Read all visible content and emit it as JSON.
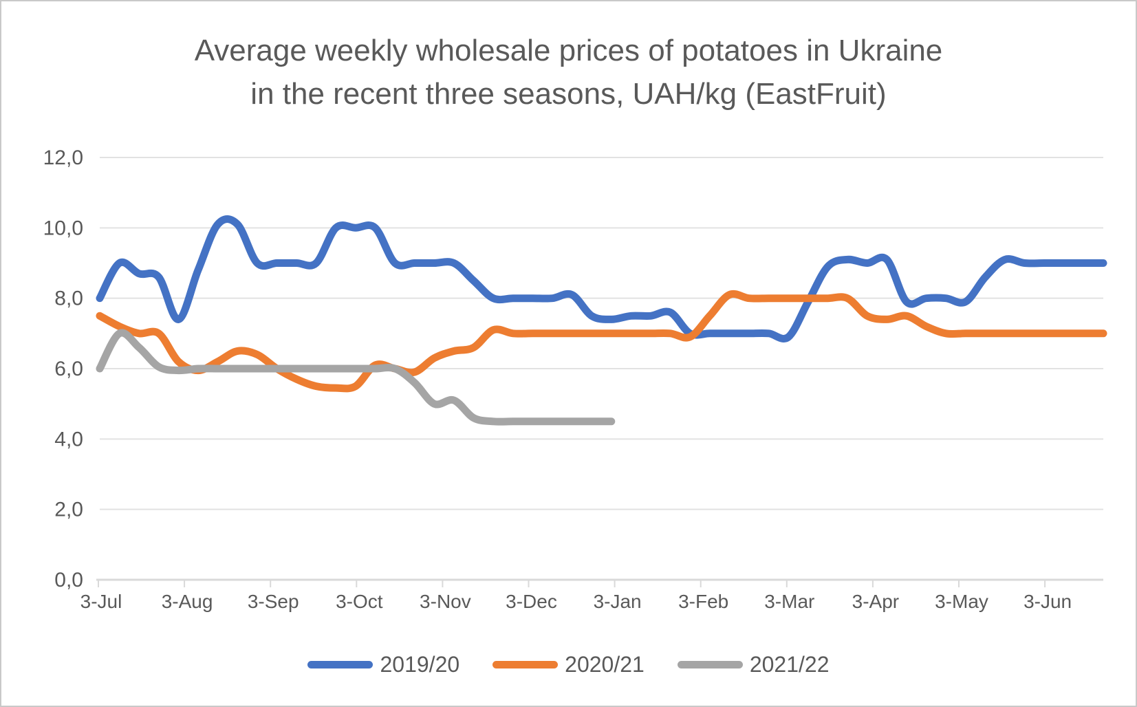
{
  "title": {
    "line1": "Average weekly wholesale prices of potatoes in Ukraine",
    "line2": "in the recent three seasons, UAH/kg (EastFruit)"
  },
  "chart_data": {
    "type": "line",
    "title": "Average weekly wholesale prices of potatoes in Ukraine in the recent three seasons, UAH/kg (EastFruit)",
    "frequency": "weekly",
    "grid": "horizontal",
    "legend_position": "bottom",
    "x_axis": {
      "tick_labels": [
        "3-Jul",
        "3-Aug",
        "3-Sep",
        "3-Oct",
        "3-Nov",
        "3-Dec",
        "3-Jan",
        "3-Feb",
        "3-Mar",
        "3-Apr",
        "3-May",
        "3-Jun"
      ]
    },
    "y_axis": {
      "min": 0,
      "max": 12,
      "step": 2,
      "decimal_separator": ",",
      "tick_labels": [
        "0,0",
        "2,0",
        "4,0",
        "6,0",
        "8,0",
        "10,0",
        "12,0"
      ]
    },
    "series": [
      {
        "name": "2019/20",
        "color": "#4472C4",
        "unit": "UAH/kg",
        "values": [
          8.0,
          9.0,
          8.7,
          8.6,
          7.4,
          8.8,
          10.1,
          10.1,
          9.0,
          9.0,
          9.0,
          9.0,
          10.0,
          10.0,
          10.0,
          9.0,
          9.0,
          9.0,
          9.0,
          8.5,
          8.0,
          8.0,
          8.0,
          8.0,
          8.1,
          7.5,
          7.4,
          7.5,
          7.5,
          7.6,
          7.0,
          7.0,
          7.0,
          7.0,
          7.0,
          6.9,
          7.9,
          8.9,
          9.1,
          9.0,
          9.1,
          7.9,
          8.0,
          8.0,
          7.9,
          8.6,
          9.1,
          9.0,
          9.0,
          9.0,
          9.0,
          9.0
        ]
      },
      {
        "name": "2020/21",
        "color": "#ED7D31",
        "unit": "UAH/kg",
        "values": [
          7.5,
          7.2,
          7.0,
          7.0,
          6.2,
          5.95,
          6.2,
          6.5,
          6.4,
          6.0,
          5.7,
          5.5,
          5.45,
          5.5,
          6.1,
          6.0,
          5.9,
          6.3,
          6.5,
          6.6,
          7.1,
          7.0,
          7.0,
          7.0,
          7.0,
          7.0,
          7.0,
          7.0,
          7.0,
          7.0,
          6.9,
          7.5,
          8.1,
          8.0,
          8.0,
          8.0,
          8.0,
          8.0,
          8.0,
          7.5,
          7.4,
          7.5,
          7.2,
          7.0,
          7.0,
          7.0,
          7.0,
          7.0,
          7.0,
          7.0,
          7.0,
          7.0
        ]
      },
      {
        "name": "2021/22",
        "color": "#A5A5A5",
        "unit": "UAH/kg",
        "values": [
          6.0,
          7.0,
          6.6,
          6.05,
          5.95,
          6.0,
          6.0,
          6.0,
          6.0,
          6.0,
          6.0,
          6.0,
          6.0,
          6.0,
          6.0,
          6.0,
          5.6,
          5.0,
          5.1,
          4.6,
          4.5,
          4.5,
          4.5,
          4.5,
          4.5,
          4.5,
          4.5
        ]
      }
    ]
  },
  "style": {
    "label_color": "#595959",
    "grid_color": "#E2E2E2",
    "axis_color": "#D9D9D9",
    "title_color": "#595959"
  }
}
